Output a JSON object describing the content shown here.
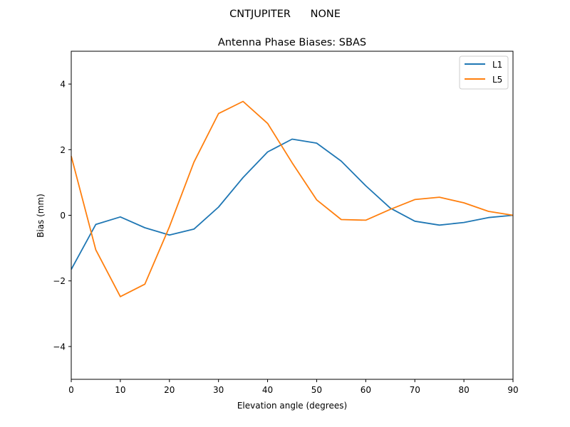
{
  "suptitle": "CNTJUPITER      NONE",
  "chart_data": {
    "type": "line",
    "title": "Antenna Phase Biases: SBAS",
    "xlabel": "Elevation angle (degrees)",
    "ylabel": "Bias (mm)",
    "xlim": [
      0,
      90
    ],
    "ylim": [
      -5,
      5
    ],
    "xticks": [
      0,
      10,
      20,
      30,
      40,
      50,
      60,
      70,
      80,
      90
    ],
    "yticks": [
      -4,
      -2,
      0,
      2,
      4
    ],
    "ytick_labels": [
      "−4",
      "−2",
      "0",
      "2",
      "4"
    ],
    "grid": false,
    "legend_position": "upper right",
    "x": [
      0,
      5,
      10,
      15,
      20,
      25,
      30,
      35,
      40,
      45,
      50,
      55,
      60,
      65,
      70,
      75,
      80,
      85,
      90
    ],
    "series": [
      {
        "name": "L1",
        "color": "#1f77b4",
        "values": [
          -1.65,
          -0.28,
          -0.05,
          -0.38,
          -0.6,
          -0.42,
          0.25,
          1.15,
          1.93,
          2.32,
          2.2,
          1.65,
          0.9,
          0.22,
          -0.18,
          -0.3,
          -0.22,
          -0.07,
          0.0
        ]
      },
      {
        "name": "L5",
        "color": "#ff7f0e",
        "values": [
          1.8,
          -1.05,
          -2.48,
          -2.1,
          -0.35,
          1.62,
          3.1,
          3.47,
          2.8,
          1.6,
          0.47,
          -0.13,
          -0.15,
          0.18,
          0.48,
          0.55,
          0.38,
          0.12,
          0.0
        ]
      }
    ]
  }
}
